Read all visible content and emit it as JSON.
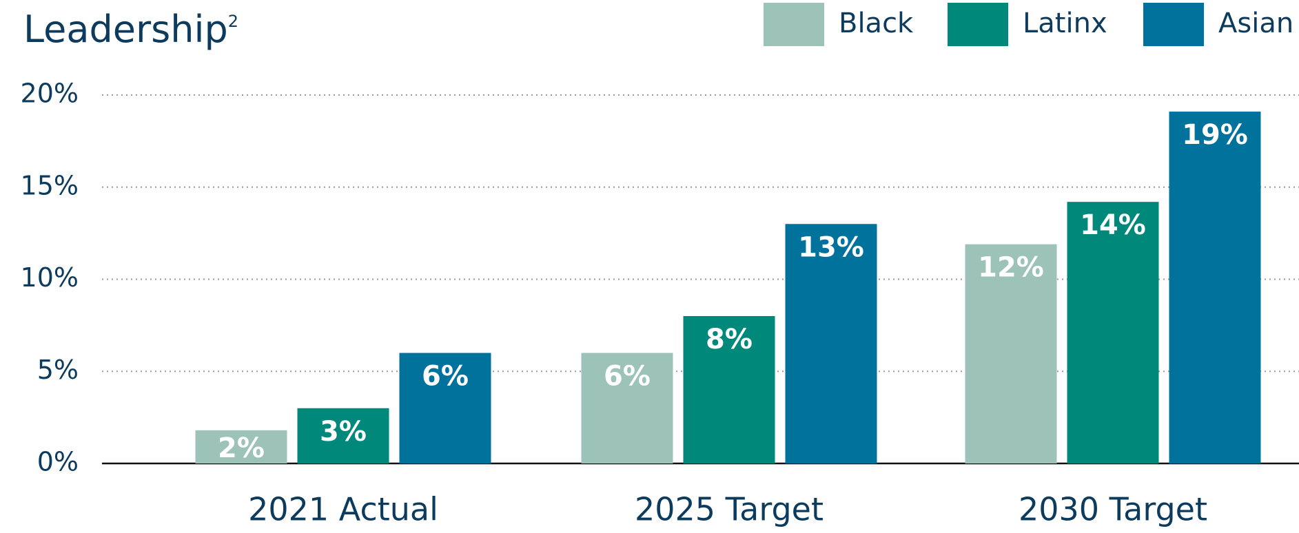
{
  "chart_data": {
    "type": "bar",
    "title": "Leadership",
    "title_superscript": "2",
    "categories": [
      "2021 Actual",
      "2025 Target",
      "2030 Target"
    ],
    "series": [
      {
        "name": "Black",
        "color": "#9dc3b9",
        "values": [
          1.8,
          6,
          11.9
        ],
        "value_labels": [
          "2%",
          "6%",
          "12%"
        ]
      },
      {
        "name": "Latinx",
        "color": "#00897b",
        "values": [
          3,
          8,
          14.2
        ],
        "value_labels": [
          "3%",
          "8%",
          "14%"
        ]
      },
      {
        "name": "Asian",
        "color": "#00729c",
        "values": [
          6,
          13,
          19.1
        ],
        "value_labels": [
          "6%",
          "13%",
          "19%"
        ]
      }
    ],
    "ylim": [
      0,
      20
    ],
    "yticks": [
      {
        "value": 0,
        "label": "0%"
      },
      {
        "value": 5,
        "label": "5%"
      },
      {
        "value": 10,
        "label": "10%"
      },
      {
        "value": 15,
        "label": "15%"
      },
      {
        "value": 20,
        "label": "20%"
      }
    ],
    "grid": true,
    "legend": "top-right"
  }
}
